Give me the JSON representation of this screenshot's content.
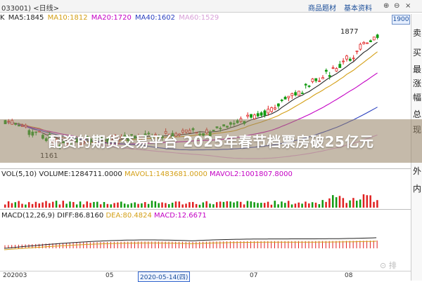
{
  "topbar": {
    "code": "033001) <日线>",
    "tab1": "商品题材",
    "tab2": "基本资料",
    "btn1": "⊕",
    "btn2": "⊖",
    "btn3": "×"
  },
  "ma_line": {
    "k": "K",
    "ma5": "MA5:1845",
    "ma10": "MA10:1812",
    "ma20": "MA20:1720",
    "ma40": "MA40:1602",
    "ma60": "MA60:1529",
    "colors": {
      "ma5": "#222222",
      "ma10": "#d4a017",
      "ma20": "#c400c4",
      "ma40": "#2a3fbf",
      "ma60": "#d8a0d8"
    }
  },
  "price_box": "1900",
  "sidebar": [
    "卖",
    "买",
    "最",
    "涨",
    "幅",
    "总",
    "现",
    "外",
    "内"
  ],
  "chart_labels": {
    "high": "1877",
    "low": "1161"
  },
  "volume_line": {
    "vol": "VOL(5,10)",
    "volume": "VOLUME:1284711.0000",
    "mavol1": "MAVOL1:1483681.0000",
    "mavol2": "MAVOL2:1001807.8000"
  },
  "macd_line": {
    "macd_name": "MACD(12,26,9)",
    "diff": "DIFF:86.8160",
    "dea": "DEA:80.4824",
    "macd": "MACD:12.6671"
  },
  "banner": "配资的期货交易平台 2025年春节档票房破25亿元",
  "axis": {
    "t1": "202003",
    "t2": "05",
    "t3": "2020-05-14(四)",
    "t4": "07",
    "t5": "08"
  },
  "watermark": "⊙ 排"
}
